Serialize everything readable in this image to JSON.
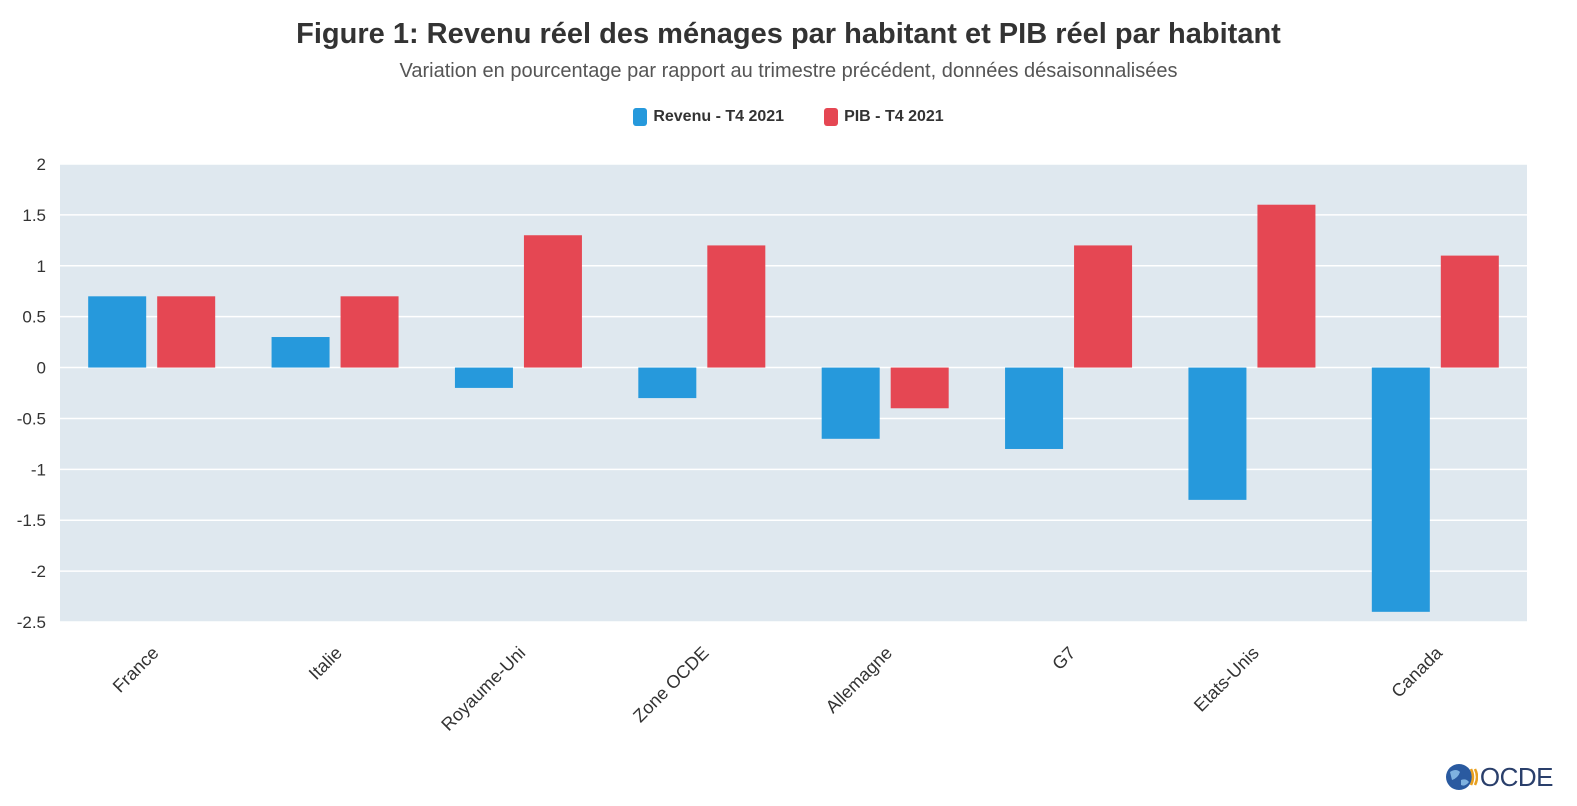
{
  "chart_data": {
    "type": "bar",
    "title": "Figure 1: Revenu réel des ménages par habitant et PIB réel par habitant",
    "subtitle": "Variation en pourcentage par rapport au trimestre précédent, données désaisonnalisées",
    "categories": [
      "France",
      "Italie",
      "Royaume-Uni",
      "Zone OCDE",
      "Allemagne",
      "G7",
      "Etats-Unis",
      "Canada"
    ],
    "series": [
      {
        "name": "Revenu - T4 2021",
        "color": "#2699dc",
        "values": [
          0.7,
          0.3,
          -0.2,
          -0.3,
          -0.7,
          -0.8,
          -1.3,
          -2.4
        ]
      },
      {
        "name": "PIB - T4 2021",
        "color": "#e54753",
        "values": [
          0.7,
          0.7,
          1.3,
          1.2,
          -0.4,
          1.2,
          1.6,
          1.1
        ]
      }
    ],
    "ylim": [
      -2.5,
      2
    ],
    "yticks": [
      "2",
      "1.5",
      "1",
      "0.5",
      "0",
      "-0.5",
      "-1",
      "-1.5",
      "-2",
      "-2.5"
    ],
    "grid": true,
    "legend_position": "top-center",
    "plot_background": "#dfe8ef"
  },
  "logo": {
    "text": "OCDE",
    "icon": "globe-icon"
  }
}
